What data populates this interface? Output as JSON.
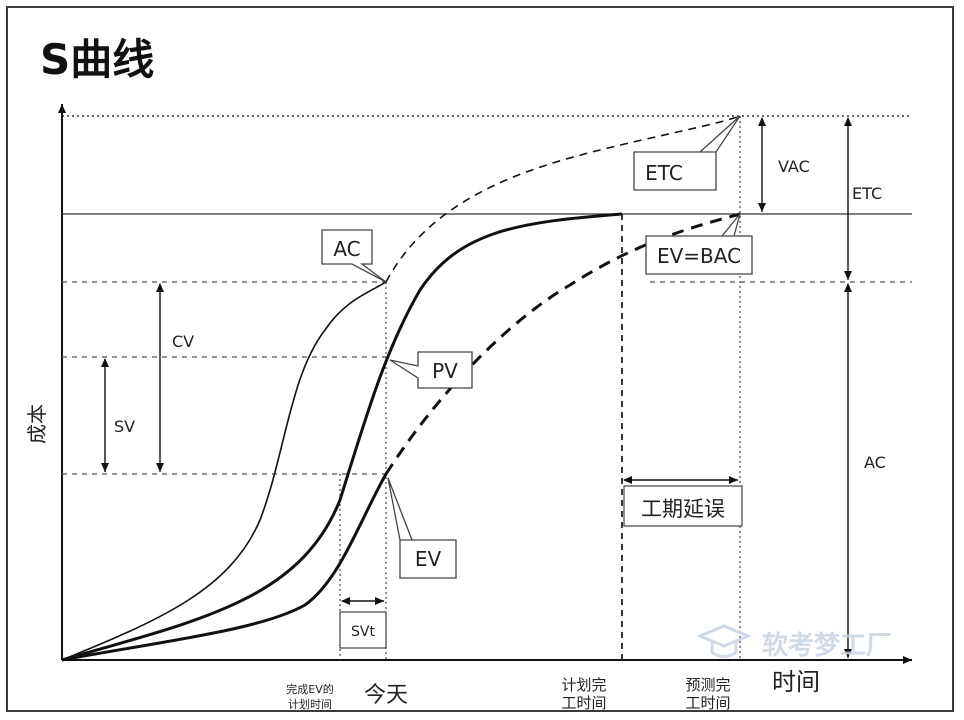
{
  "title": "S曲线",
  "axes": {
    "y_label": "成本",
    "x_label": "时间"
  },
  "curves": {
    "ac": "AC",
    "pv": "PV",
    "ev": "EV",
    "etc": "ETC",
    "ev_bac": "EV=BAC"
  },
  "measures": {
    "cv": "CV",
    "sv": "SV",
    "svt": "SVt",
    "vac": "VAC",
    "etc_right": "ETC",
    "ac_right": "AC",
    "delay": "工期延误"
  },
  "x_ticks": {
    "ev_planned_line1": "完成EV的",
    "ev_planned_line2": "计划时间",
    "today": "今天",
    "planned_finish_line1": "计划完",
    "planned_finish_line2": "工时间",
    "forecast_finish_line1": "预测完",
    "forecast_finish_line2": "工时间"
  },
  "watermark": "软考梦工厂",
  "colors": {
    "line": "#111111",
    "watermark": "#c8d3e2"
  }
}
